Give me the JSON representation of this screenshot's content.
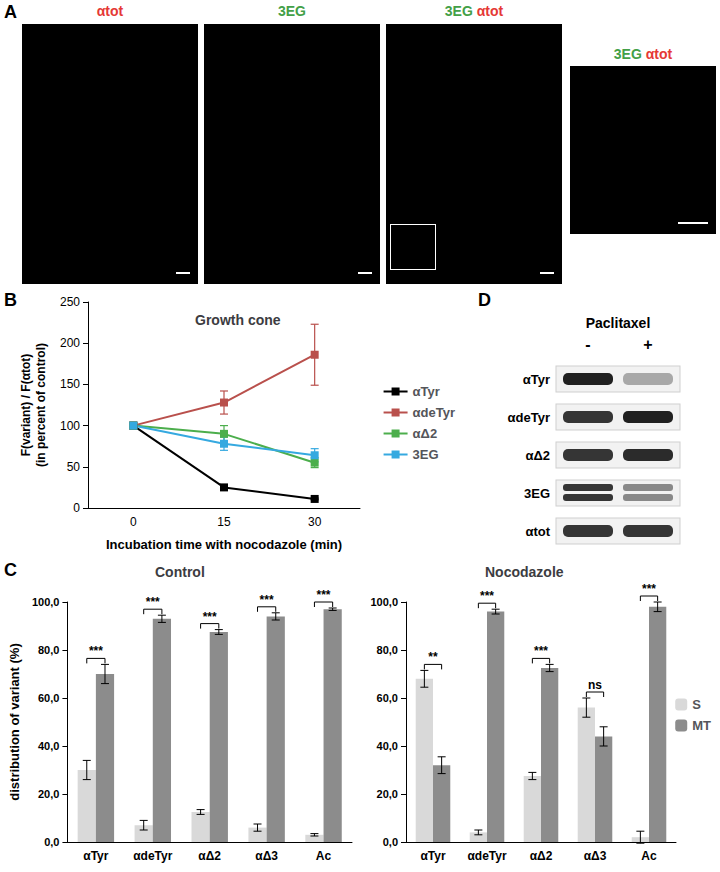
{
  "panels": [
    "A",
    "B",
    "C",
    "D"
  ],
  "images": {
    "channels": {
      "αtot": "#e53935",
      "3EG": "#43a047"
    },
    "titles": [
      "αtot",
      "3EG",
      "3EG αtot"
    ],
    "inset_title": "3EG αtot"
  },
  "chart_data": [
    {
      "type": "line",
      "title": "Growth cone",
      "x_label": "Incubation time with nocodazole (min)",
      "y_label": "F(variant) / F(αtot)\n(in percent of control)",
      "categories": [
        "0",
        "15",
        "30"
      ],
      "ylim": [
        0,
        250
      ],
      "yticks": [
        0,
        50,
        100,
        150,
        200,
        250
      ],
      "grid": false,
      "legend": "right",
      "marker": "square",
      "series": [
        {
          "name": "αTyr",
          "color": "#000000",
          "values": [
            100,
            25,
            11
          ],
          "errors": [
            0,
            2,
            1
          ]
        },
        {
          "name": "αdeTyr",
          "color": "#b9504c",
          "values": [
            100,
            128,
            186
          ],
          "errors": [
            0,
            14,
            37
          ]
        },
        {
          "name": "αΔ2",
          "color": "#4cae4c",
          "values": [
            100,
            90,
            55
          ],
          "errors": [
            0,
            10,
            6
          ]
        },
        {
          "name": "3EG",
          "color": "#35a9e0",
          "values": [
            100,
            78,
            64
          ],
          "errors": [
            0,
            8,
            8
          ]
        }
      ]
    },
    {
      "type": "bar",
      "title": "Control",
      "y_label": "distribution of variant (%)",
      "categories": [
        "αTyr",
        "αdeTyr",
        "αΔ2",
        "αΔ3",
        "Ac"
      ],
      "ylim": [
        0,
        100
      ],
      "yticks": [
        {
          "value": 0,
          "label": "0,0"
        },
        {
          "value": 20,
          "label": "20,0"
        },
        {
          "value": 40,
          "label": "40,0"
        },
        {
          "value": 60,
          "label": "60,0"
        },
        {
          "value": 80,
          "label": "80,0"
        },
        {
          "value": 100,
          "label": "100,0"
        }
      ],
      "grid": false,
      "series": [
        {
          "name": "S",
          "color": "#d9d9d9",
          "values": [
            30,
            7,
            12.5,
            6,
            3
          ],
          "errors": [
            4,
            2,
            1,
            1.5,
            0.5
          ]
        },
        {
          "name": "MT",
          "color": "#8c8c8c",
          "values": [
            70,
            93,
            87.5,
            94,
            97
          ],
          "errors": [
            4,
            1.5,
            1,
            1.5,
            0.5
          ]
        }
      ],
      "significance": [
        "***",
        "***",
        "***",
        "***",
        "***"
      ]
    },
    {
      "type": "bar",
      "title": "Nocodazole",
      "categories": [
        "αTyr",
        "αdeTyr",
        "αΔ2",
        "αΔ3",
        "Ac"
      ],
      "ylim": [
        0,
        100
      ],
      "yticks": [
        {
          "value": 0,
          "label": "0,0"
        },
        {
          "value": 20,
          "label": "20,0"
        },
        {
          "value": 40,
          "label": "40,0"
        },
        {
          "value": 60,
          "label": "60,0"
        },
        {
          "value": 80,
          "label": "80,0"
        },
        {
          "value": 100,
          "label": "100,0"
        }
      ],
      "grid": false,
      "legend": "right",
      "series": [
        {
          "name": "S",
          "color": "#d9d9d9",
          "values": [
            68,
            4,
            27.5,
            56,
            2
          ],
          "errors": [
            3.5,
            1,
            1.5,
            4,
            2.5
          ]
        },
        {
          "name": "MT",
          "color": "#8c8c8c",
          "values": [
            32,
            96,
            72.5,
            44,
            98
          ],
          "errors": [
            3.5,
            1,
            1.5,
            4,
            2
          ]
        }
      ],
      "significance": [
        "**",
        "***",
        "***",
        "ns",
        "***"
      ]
    }
  ],
  "blot": {
    "treatment": "Paclitaxel",
    "lanes": [
      "-",
      "+"
    ],
    "rows": [
      {
        "label": "αTyr",
        "bands": 1,
        "intensity": [
          1,
          0.35
        ]
      },
      {
        "label": "αdeTyr",
        "bands": 1,
        "intensity": [
          0.9,
          1
        ]
      },
      {
        "label": "αΔ2",
        "bands": 1,
        "intensity": [
          0.9,
          0.95
        ]
      },
      {
        "label": "3EG",
        "bands": 2,
        "intensity": [
          0.9,
          0.5
        ]
      },
      {
        "label": "αtot",
        "bands": 1,
        "intensity": [
          0.9,
          0.9
        ]
      }
    ]
  }
}
